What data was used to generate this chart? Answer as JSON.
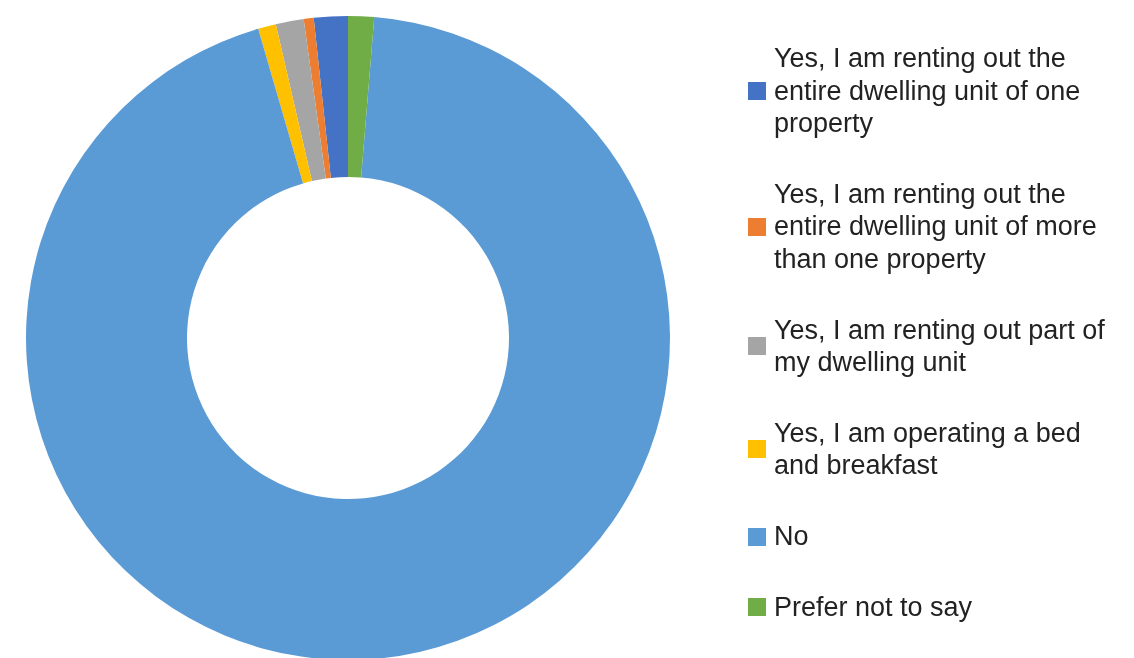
{
  "chart_data": {
    "type": "donut",
    "categories": [
      "Yes, I am renting out the entire dwelling unit of one property",
      "Yes, I am renting out the entire dwelling unit of more than one property",
      "Yes, I am renting out part of my dwelling unit",
      "Yes, I am operating a bed and breakfast",
      "No",
      "Prefer not to say"
    ],
    "values": [
      1.7,
      0.5,
      1.4,
      0.9,
      94.2,
      1.3
    ],
    "colors": [
      "#4472c4",
      "#ed7d31",
      "#a5a5a5",
      "#ffc000",
      "#5b9bd5",
      "#70ad47"
    ],
    "legend": "right"
  }
}
